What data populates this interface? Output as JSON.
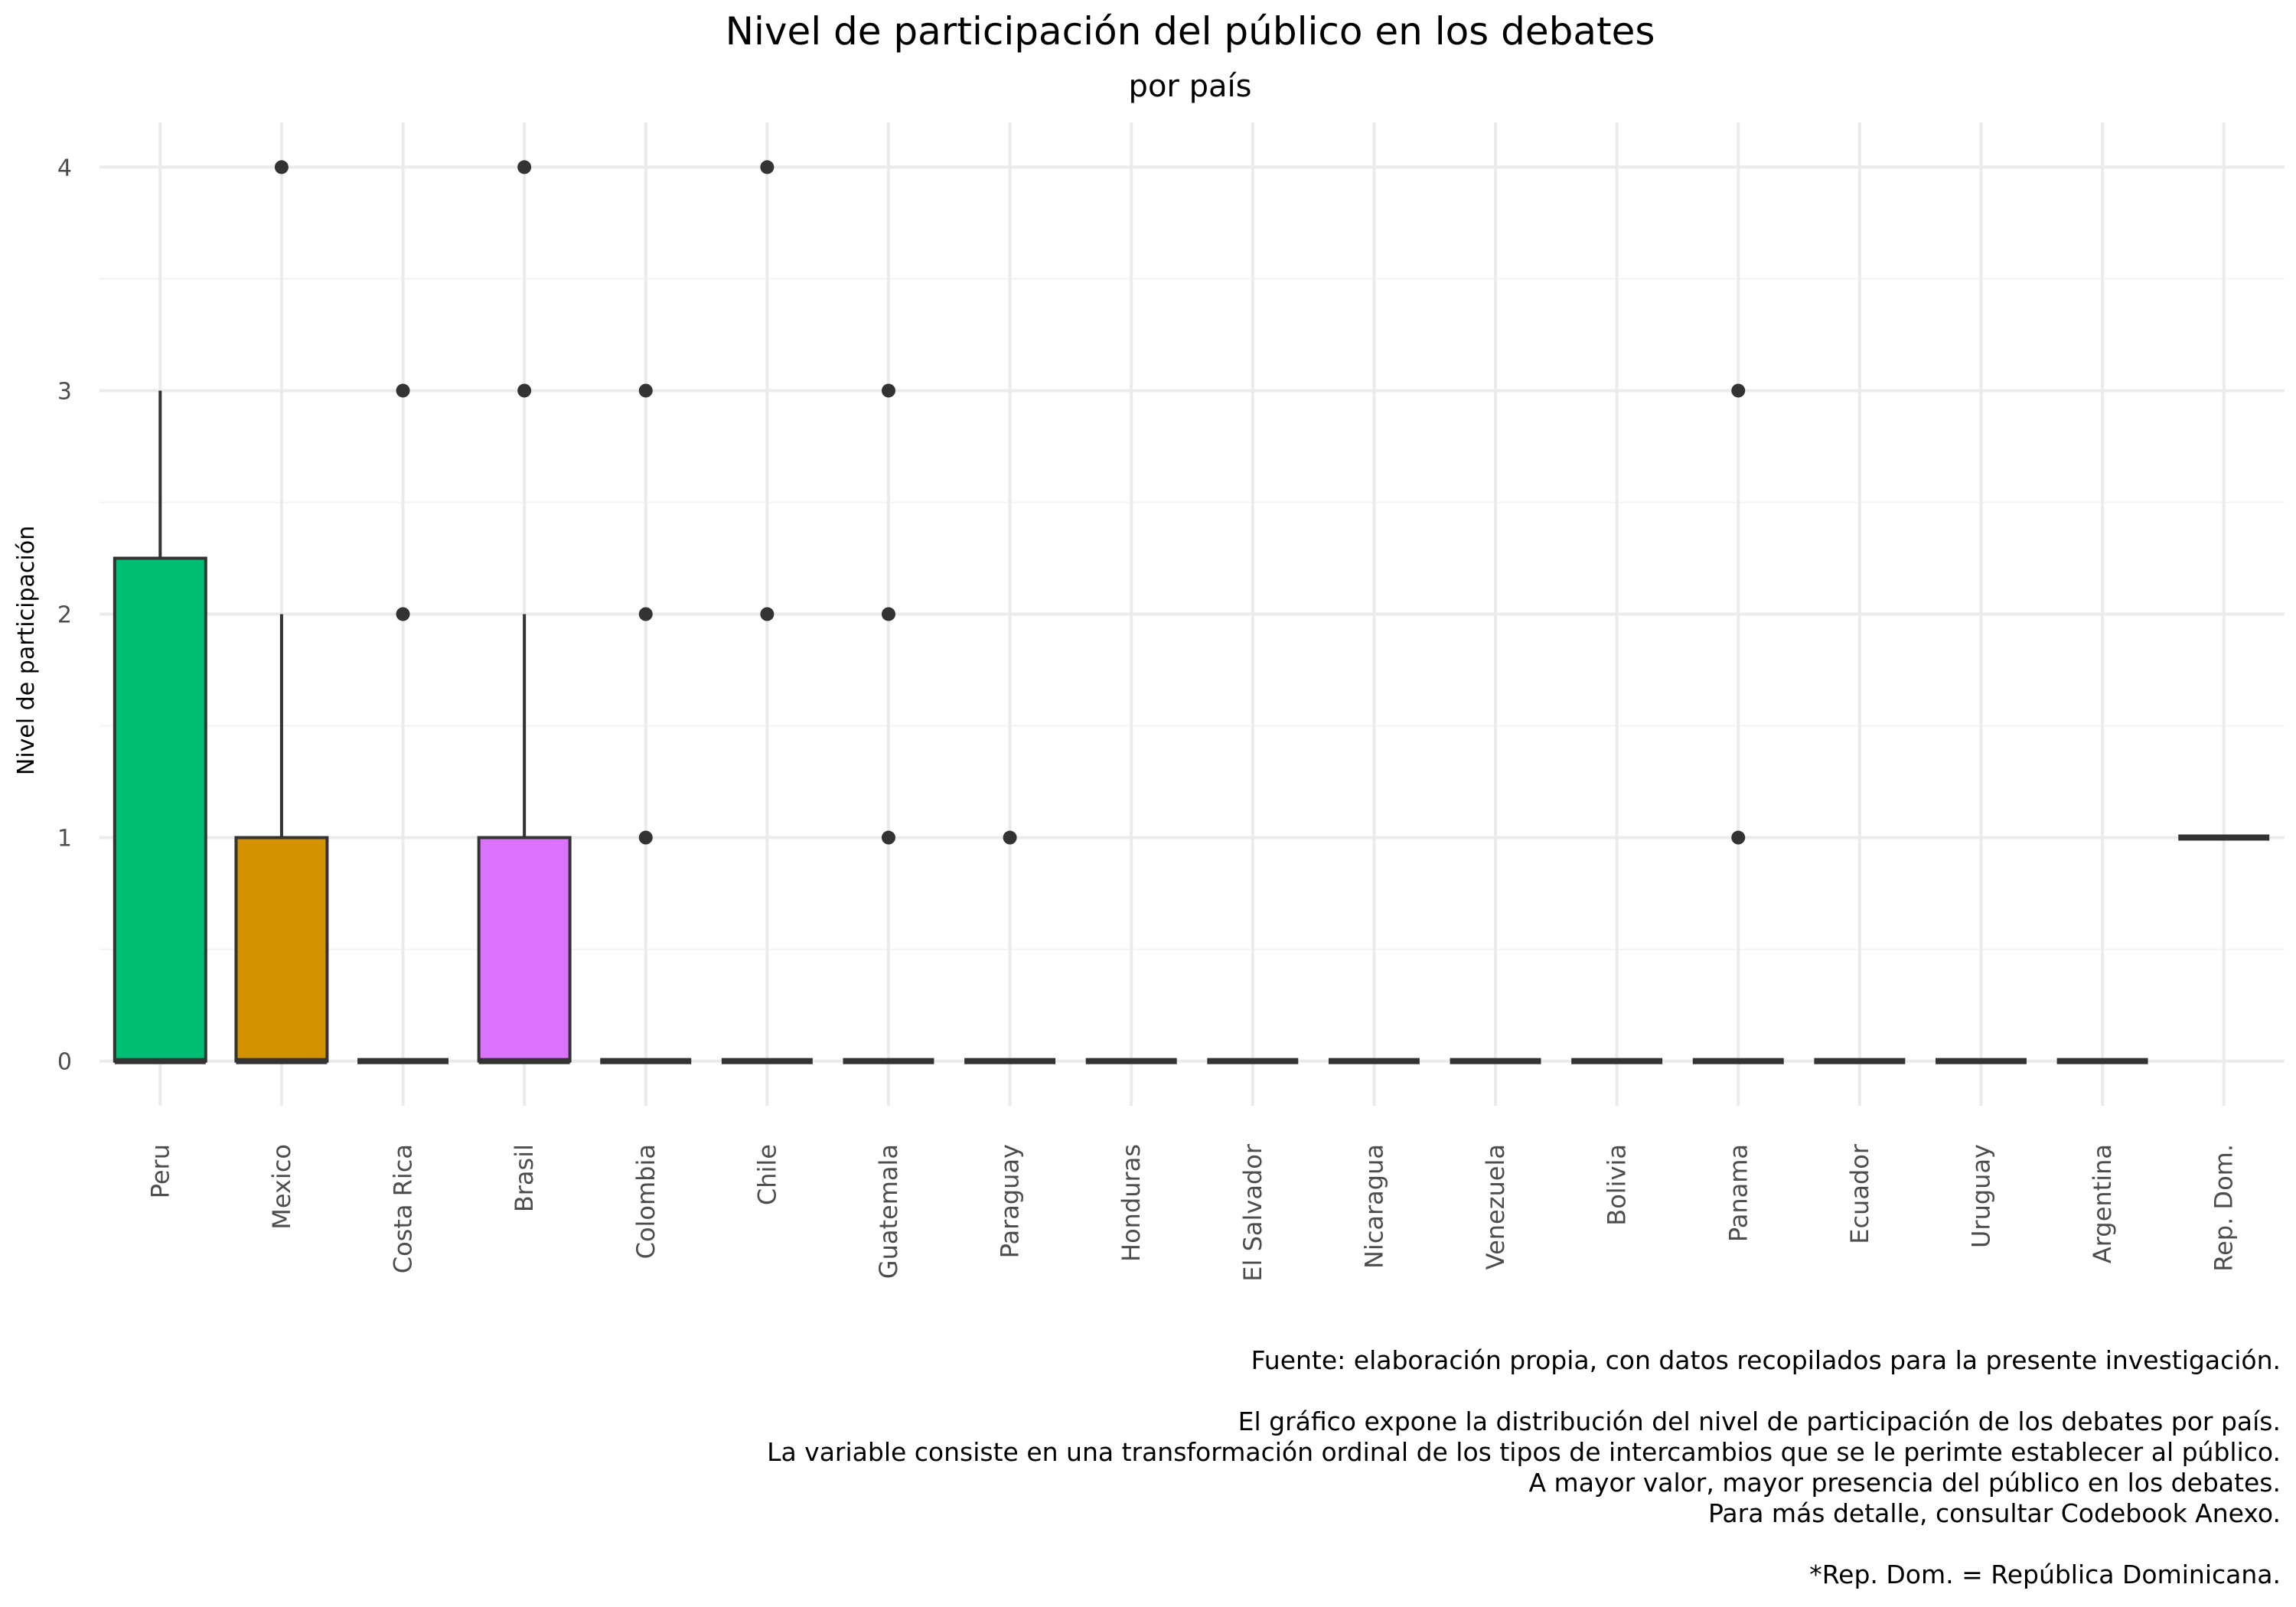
{
  "chart_data": {
    "type": "boxplot",
    "title": "Nivel de participación del público en los debates",
    "subtitle": "por país",
    "xlabel": "",
    "ylabel": "Nivel de participación",
    "ylim": [
      -0.2,
      4.2
    ],
    "yticks": [
      0,
      1,
      2,
      3,
      4
    ],
    "grid": true,
    "legend": "none",
    "categories": [
      "Peru",
      "Mexico",
      "Costa Rica",
      "Brasil",
      "Colombia",
      "Chile",
      "Guatemala",
      "Paraguay",
      "Honduras",
      "El Salvador",
      "Nicaragua",
      "Venezuela",
      "Bolivia",
      "Panama",
      "Ecuador",
      "Uruguay",
      "Argentina",
      "Rep. Dom."
    ],
    "boxes": [
      {
        "category": "Peru",
        "min": 0,
        "q1": 0,
        "median": 0,
        "q3": 2.25,
        "max": 3,
        "outliers": [],
        "color": "#00BF74"
      },
      {
        "category": "Mexico",
        "min": 0,
        "q1": 0,
        "median": 0,
        "q3": 1,
        "max": 2,
        "outliers": [
          4
        ],
        "color": "#D39200"
      },
      {
        "category": "Costa Rica",
        "min": 0,
        "q1": 0,
        "median": 0,
        "q3": 0,
        "max": 0,
        "outliers": [
          2,
          3
        ],
        "color": "#8DA0CB"
      },
      {
        "category": "Brasil",
        "min": 0,
        "q1": 0,
        "median": 0,
        "q3": 1,
        "max": 2,
        "outliers": [
          3,
          4
        ],
        "color": "#DB72FB"
      },
      {
        "category": "Colombia",
        "min": 0,
        "q1": 0,
        "median": 0,
        "q3": 0,
        "max": 0,
        "outliers": [
          1,
          2,
          3
        ],
        "color": "#93AA00"
      },
      {
        "category": "Chile",
        "min": 0,
        "q1": 0,
        "median": 0,
        "q3": 0,
        "max": 0,
        "outliers": [
          2,
          4
        ],
        "color": "#00C19F"
      },
      {
        "category": "Guatemala",
        "min": 0,
        "q1": 0,
        "median": 0,
        "q3": 0,
        "max": 0,
        "outliers": [
          1,
          2,
          3
        ],
        "color": "#00B9E3"
      },
      {
        "category": "Paraguay",
        "min": 0,
        "q1": 0,
        "median": 0,
        "q3": 0,
        "max": 0,
        "outliers": [
          1
        ],
        "color": "#619CFF"
      },
      {
        "category": "Honduras",
        "min": 0,
        "q1": 0,
        "median": 0,
        "q3": 0,
        "max": 0,
        "outliers": [],
        "color": "#F8766D"
      },
      {
        "category": "El Salvador",
        "min": 0,
        "q1": 0,
        "median": 0,
        "q3": 0,
        "max": 0,
        "outliers": [],
        "color": "#FF61C3"
      },
      {
        "category": "Nicaragua",
        "min": 0,
        "q1": 0,
        "median": 0,
        "q3": 0,
        "max": 0,
        "outliers": [],
        "color": "#00BA38"
      },
      {
        "category": "Venezuela",
        "min": 0,
        "q1": 0,
        "median": 0,
        "q3": 0,
        "max": 0,
        "outliers": [],
        "color": "#B79F00"
      },
      {
        "category": "Bolivia",
        "min": 0,
        "q1": 0,
        "median": 0,
        "q3": 0,
        "max": 0,
        "outliers": [],
        "color": "#00BFC4"
      },
      {
        "category": "Panama",
        "min": 0,
        "q1": 0,
        "median": 0,
        "q3": 0,
        "max": 0,
        "outliers": [
          1,
          3
        ],
        "color": "#C77CFF"
      },
      {
        "category": "Ecuador",
        "min": 0,
        "q1": 0,
        "median": 0,
        "q3": 0,
        "max": 0,
        "outliers": [],
        "color": "#E58700"
      },
      {
        "category": "Uruguay",
        "min": 0,
        "q1": 0,
        "median": 0,
        "q3": 0,
        "max": 0,
        "outliers": [],
        "color": "#A3A500"
      },
      {
        "category": "Argentina",
        "min": 0,
        "q1": 0,
        "median": 0,
        "q3": 0,
        "max": 0,
        "outliers": [],
        "color": "#39B600"
      },
      {
        "category": "Rep. Dom.",
        "min": 1,
        "q1": 1,
        "median": 1,
        "q3": 1,
        "max": 1,
        "outliers": [],
        "color": "#FF64B0"
      }
    ]
  },
  "caption": {
    "source": "Fuente: elaboración propia, con datos recopilados para la presente investigación.",
    "note1": "El gráfico expone la distribución del nivel de participación de los debates por país.",
    "note2": "La variable consiste en una transformación ordinal de los tipos de intercambios que se le perimte establecer al público.",
    "note3": "A mayor valor, mayor presencia del público en los debates.",
    "note4": "Para más detalle, consultar Codebook Anexo.",
    "footnote": "*Rep. Dom. = República Dominicana."
  },
  "colors": {
    "grid_major": "#EBEBEB",
    "grid_minor": "#F3F3F3",
    "box_outline": "#333333",
    "tick_text": "#4D4D4D"
  }
}
